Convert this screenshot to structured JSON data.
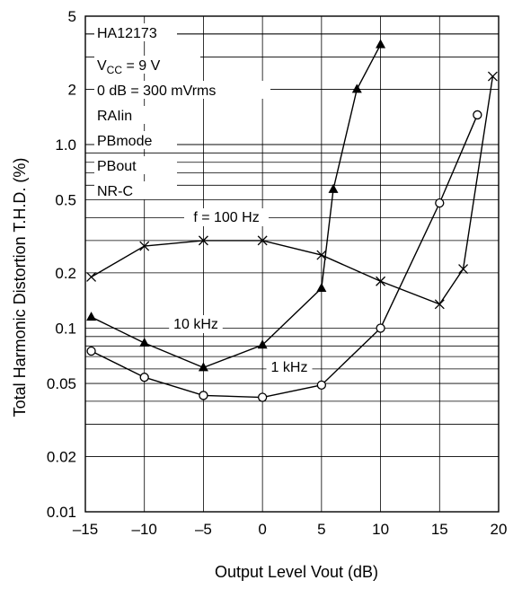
{
  "chart_data": {
    "type": "line",
    "xlabel": "Output Level Vout (dB)",
    "ylabel": "Total Harmonic Distortion T.H.D. (%)",
    "xlim": [
      -15,
      20
    ],
    "ylim": [
      0.01,
      5
    ],
    "yscale": "log",
    "xticks": [
      -15,
      -10,
      -5,
      0,
      5,
      10,
      15,
      20
    ],
    "xtick_labels": [
      "–15",
      "–10",
      "–5",
      "0",
      "5",
      "10",
      "15",
      "20"
    ],
    "yticks": [
      0.01,
      0.02,
      0.05,
      0.1,
      0.2,
      0.5,
      1.0,
      2,
      5
    ],
    "ytick_labels": [
      "0.01",
      "0.02",
      "0.05",
      "0.1",
      "0.2",
      "0.5",
      "1.0",
      "2",
      "5"
    ],
    "grid": true,
    "annotations": [
      "HA12173",
      "V_CC = 9 V",
      "0 dB = 300 mVrms",
      "RAIin",
      "PBmode",
      "PBout",
      "NR-C"
    ],
    "series": [
      {
        "name": "f = 100 Hz",
        "marker": "x",
        "x": [
          -14.5,
          -10,
          -5,
          0,
          5,
          10,
          15,
          17,
          19.5
        ],
        "y": [
          0.19,
          0.28,
          0.3,
          0.3,
          0.25,
          0.18,
          0.135,
          0.21,
          2.35
        ]
      },
      {
        "name": "10 kHz",
        "marker": "filled-triangle",
        "x": [
          -14.5,
          -10,
          -5,
          0,
          5,
          6,
          8,
          10
        ],
        "y": [
          0.115,
          0.083,
          0.061,
          0.081,
          0.165,
          0.57,
          2.0,
          3.5
        ]
      },
      {
        "name": "1 kHz",
        "marker": "open-circle",
        "x": [
          -14.5,
          -10,
          -5,
          0,
          5,
          10,
          15,
          18.2
        ],
        "y": [
          0.075,
          0.054,
          0.043,
          0.042,
          0.049,
          0.1,
          0.48,
          1.45
        ]
      }
    ]
  }
}
